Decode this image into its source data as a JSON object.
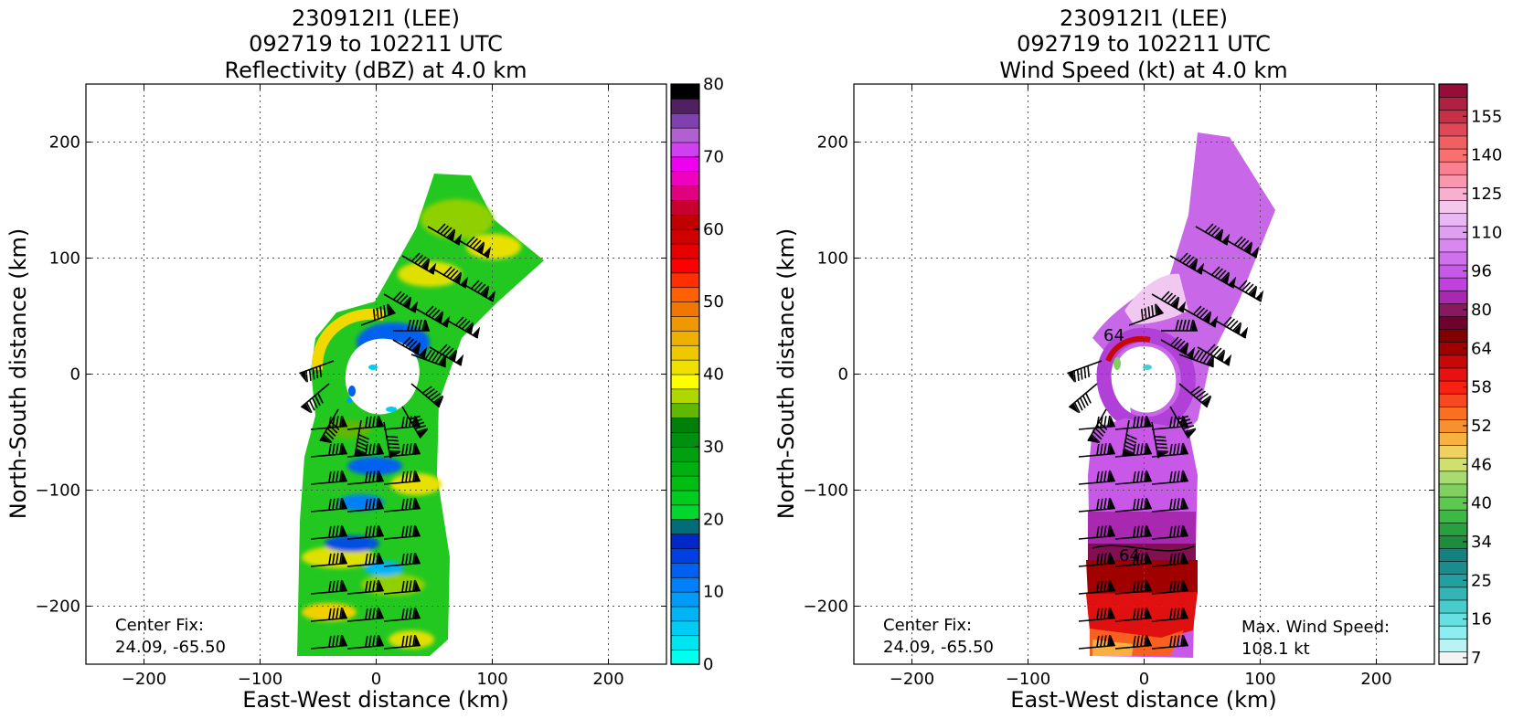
{
  "chart_data": [
    {
      "type": "heatmap",
      "title_lines": [
        "230912I1 (LEE)",
        "092719 to 102211 UTC",
        "Reflectivity (dBZ) at 4.0 km"
      ],
      "xlabel": "East-West distance (km)",
      "ylabel": "North-South distance (km)",
      "xlim": [
        -250,
        250
      ],
      "ylim": [
        -250,
        250
      ],
      "xticks": [
        -200,
        -100,
        0,
        100,
        200
      ],
      "yticks": [
        -200,
        -100,
        0,
        100,
        200
      ],
      "xtick_labels": [
        "−200",
        "−100",
        "0",
        "100",
        "200"
      ],
      "ytick_labels": [
        "−200",
        "−100",
        "0",
        "100",
        "200"
      ],
      "grid": true,
      "annotation": [
        "Center Fix:",
        "24.09, -65.50"
      ],
      "colorbar": {
        "min": 0,
        "max": 80,
        "ticks": [
          0,
          10,
          20,
          30,
          40,
          50,
          60,
          70,
          80
        ],
        "tick_labels": [
          "0",
          "10",
          "20",
          "30",
          "40",
          "50",
          "60",
          "70",
          "80"
        ],
        "colors": [
          "#00ffee",
          "#00e6f0",
          "#00ccf5",
          "#00b4f8",
          "#009cf8",
          "#0080f8",
          "#0060f0",
          "#0040e0",
          "#0028c8",
          "#006e7a",
          "#00d830",
          "#00cc20",
          "#00be10",
          "#00b010",
          "#00a010",
          "#009010",
          "#008008",
          "#60b800",
          "#b0d800",
          "#ffff00",
          "#f0e000",
          "#f0c800",
          "#f0b000",
          "#f09800",
          "#f07800",
          "#ff6000",
          "#ff3000",
          "#ff0000",
          "#e80000",
          "#d00000",
          "#c00000",
          "#c80030",
          "#e00080",
          "#f000c0",
          "#f000f0",
          "#d040f0",
          "#b060d0",
          "#8040b0",
          "#502060",
          "#000000"
        ]
      }
    },
    {
      "type": "heatmap",
      "title_lines": [
        "230912I1 (LEE)",
        "092719 to 102211 UTC",
        "Wind Speed (kt) at 4.0 km"
      ],
      "xlabel": "East-West distance (km)",
      "ylabel": "North-South distance (km)",
      "xlim": [
        -250,
        250
      ],
      "ylim": [
        -250,
        250
      ],
      "xticks": [
        -200,
        -100,
        0,
        100,
        200
      ],
      "yticks": [
        -200,
        -100,
        0,
        100,
        200
      ],
      "xtick_labels": [
        "−200",
        "−100",
        "0",
        "100",
        "200"
      ],
      "ytick_labels": [
        "−200",
        "−100",
        "0",
        "100",
        "200"
      ],
      "grid": true,
      "annotation": [
        "Center Fix:",
        "24.09, -65.50"
      ],
      "max_wind_label": [
        "Max. Wind Speed:",
        "108.1 kt"
      ],
      "contour_labels": [
        "64",
        "64"
      ],
      "colorbar": {
        "tick_labels": [
          "7",
          "16",
          "25",
          "34",
          "40",
          "46",
          "52",
          "58",
          "64",
          "80",
          "96",
          "110",
          "125",
          "140",
          "155"
        ],
        "colors": [
          "#f4f4f4",
          "#b8f4f4",
          "#8ceeee",
          "#66e0e0",
          "#48cccc",
          "#34b4b4",
          "#22a0a0",
          "#1a8c8c",
          "#148080",
          "#1e8c3c",
          "#28a040",
          "#3cb844",
          "#5cc850",
          "#80d060",
          "#a8dc70",
          "#d0e070",
          "#f0d060",
          "#f8b040",
          "#f89030",
          "#f87020",
          "#f84820",
          "#f82010",
          "#e81010",
          "#c80808",
          "#a00000",
          "#800000",
          "#700030",
          "#881860",
          "#a828b0",
          "#c040e0",
          "#c858e8",
          "#d070ec",
          "#d888ee",
          "#e0a0f0",
          "#e8b8f4",
          "#f4c8ec",
          "#f8b0d0",
          "#f898b0",
          "#f88090",
          "#f87070",
          "#f06060",
          "#e04858",
          "#c83048",
          "#b02040",
          "#980c38"
        ]
      }
    }
  ]
}
